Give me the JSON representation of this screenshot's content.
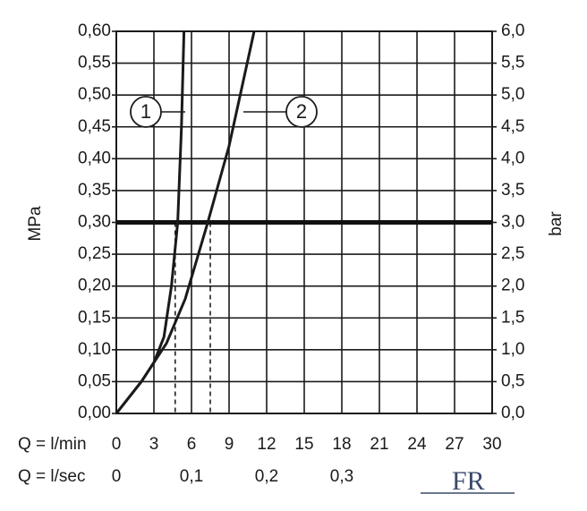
{
  "chart_data": {
    "type": "line",
    "xlabel": "Q = l/min",
    "x2label": "Q = l/sec",
    "ylabel": "MPa",
    "y2label": "bar",
    "xlim": [
      0,
      30
    ],
    "xticks": [
      0,
      3,
      6,
      9,
      12,
      15,
      18,
      21,
      24,
      27,
      30
    ],
    "x2ticks": [
      0,
      {
        "value": 0.1,
        "label": "0,1"
      },
      {
        "value": 0.2,
        "label": "0,2"
      },
      {
        "value": 0.3,
        "label": "0,3"
      }
    ],
    "ylim": [
      0,
      0.6
    ],
    "yticks": [
      {
        "value": 0,
        "label": "0,00"
      },
      {
        "value": 0.05,
        "label": "0,05"
      },
      {
        "value": 0.1,
        "label": "0,10"
      },
      {
        "value": 0.15,
        "label": "0,15"
      },
      {
        "value": 0.2,
        "label": "0,20"
      },
      {
        "value": 0.25,
        "label": "0,25"
      },
      {
        "value": 0.3,
        "label": "0,30"
      },
      {
        "value": 0.35,
        "label": "0,35"
      },
      {
        "value": 0.4,
        "label": "0,40"
      },
      {
        "value": 0.45,
        "label": "0,45"
      },
      {
        "value": 0.5,
        "label": "0,50"
      },
      {
        "value": 0.55,
        "label": "0,55"
      },
      {
        "value": 0.6,
        "label": "0,60"
      }
    ],
    "y2lim": [
      0,
      6
    ],
    "y2ticks": [
      {
        "value": 0,
        "label": "0,0"
      },
      {
        "value": 0.5,
        "label": "0,5"
      },
      {
        "value": 1,
        "label": "1,0"
      },
      {
        "value": 1.5,
        "label": "1,5"
      },
      {
        "value": 2,
        "label": "2,0"
      },
      {
        "value": 2.5,
        "label": "2,5"
      },
      {
        "value": 3,
        "label": "3,0"
      },
      {
        "value": 3.5,
        "label": "3,5"
      },
      {
        "value": 4,
        "label": "4,0"
      },
      {
        "value": 4.5,
        "label": "4,5"
      },
      {
        "value": 5,
        "label": "5,0"
      },
      {
        "value": 5.5,
        "label": "5,5"
      },
      {
        "value": 6,
        "label": "6,0"
      }
    ],
    "grid": true,
    "reference_y": 0.3,
    "drop_lines": [
      {
        "x": 4.7,
        "y": 0.3
      },
      {
        "x": 7.5,
        "y": 0.3
      }
    ],
    "series": [
      {
        "name": "1",
        "color": "#1a1a1a",
        "x": [
          0,
          2,
          3,
          3.8,
          4.4,
          4.9,
          5.2,
          5.4
        ],
        "values": [
          0,
          0.05,
          0.08,
          0.12,
          0.2,
          0.3,
          0.45,
          0.6
        ]
      },
      {
        "name": "2",
        "color": "#1a1a1a",
        "x": [
          0,
          2,
          4,
          5.5,
          7.3,
          9,
          11
        ],
        "values": [
          0,
          0.05,
          0.11,
          0.18,
          0.3,
          0.42,
          0.6
        ]
      }
    ],
    "logo": "FR"
  }
}
